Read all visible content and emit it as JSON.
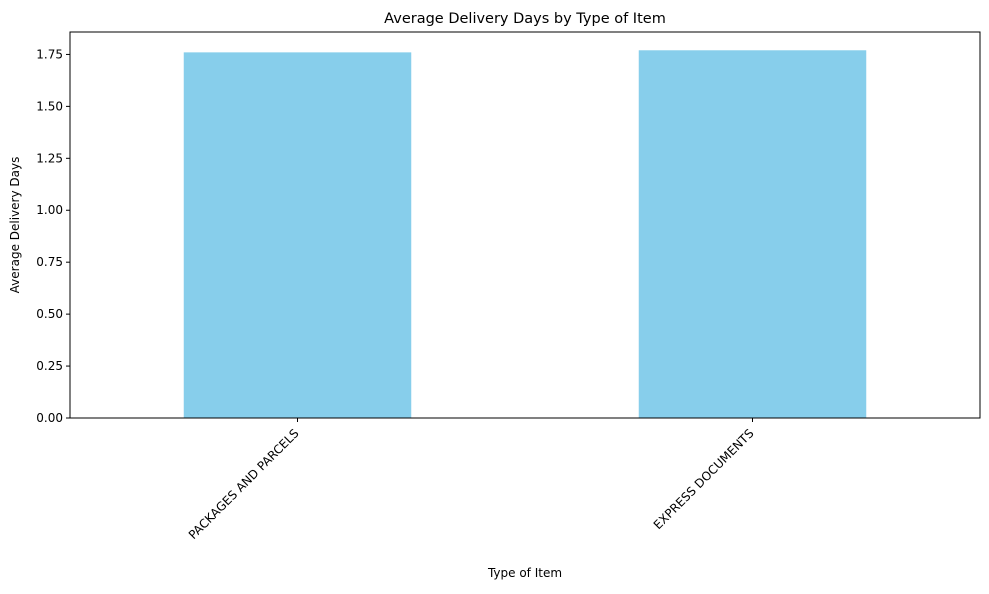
{
  "chart_data": {
    "type": "bar",
    "title": "Average Delivery Days by Type of Item",
    "xlabel": "Type of Item",
    "ylabel": "Average Delivery Days",
    "categories": [
      "PACKAGES AND PARCELS",
      "EXPRESS DOCUMENTS"
    ],
    "values": [
      1.76,
      1.77
    ],
    "ylim": [
      0,
      1.858
    ],
    "yticks": [
      0.0,
      0.25,
      0.5,
      0.75,
      1.0,
      1.25,
      1.5,
      1.75
    ],
    "ytick_labels": [
      "0.00",
      "0.25",
      "0.50",
      "0.75",
      "1.00",
      "1.25",
      "1.50",
      "1.75"
    ],
    "bar_color": "#87CEEB",
    "grid": false,
    "legend": false
  }
}
